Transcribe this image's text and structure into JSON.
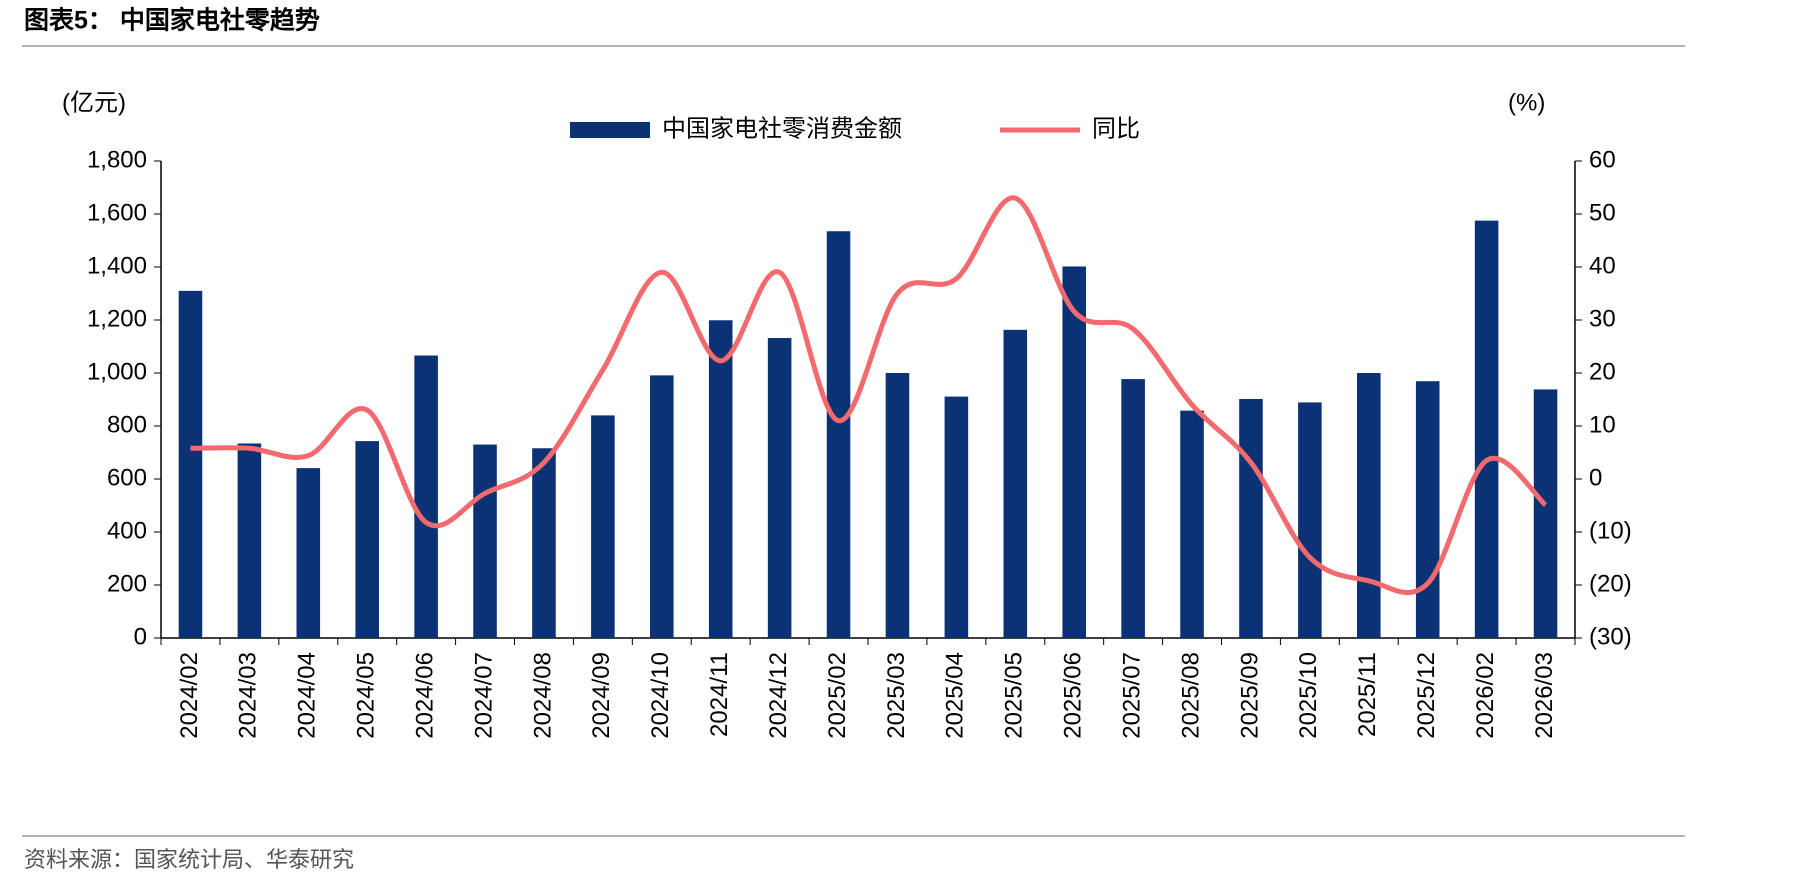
{
  "chart_data": {
    "type": "bar-line",
    "title": "图表5：  中国家电社零趋势",
    "source": "资料来源：国家统计局、华泰研究",
    "y_label": "(亿元)",
    "y2_label": "(%)",
    "categories": [
      "2024/02",
      "2024/03",
      "2024/04",
      "2024/05",
      "2024/06",
      "2024/07",
      "2024/08",
      "2024/09",
      "2024/10",
      "2024/11",
      "2024/12",
      "2025/02",
      "2025/03",
      "2025/04",
      "2025/05",
      "2025/06",
      "2025/07",
      "2025/08",
      "2025/09",
      "2025/10",
      "2025/11",
      "2025/12",
      "2026/02",
      "2026/03"
    ],
    "series": [
      {
        "name": "中国家电社零消费金额",
        "type": "bar",
        "color": "#0b3275",
        "values": [
          1310,
          734,
          641,
          743,
          1066,
          730,
          716,
          840,
          991,
          1199,
          1132,
          1535,
          1000,
          911,
          1163,
          1402,
          977,
          858,
          902,
          889,
          1000,
          969,
          1575,
          938
        ]
      },
      {
        "name": "同比",
        "type": "line",
        "axis": "y2",
        "color": "#f26a6e",
        "values": [
          5.8,
          5.8,
          4.4,
          13,
          -8.2,
          -2.7,
          3.1,
          20.6,
          39,
          22.3,
          39,
          11,
          35,
          37.8,
          53,
          31.6,
          28.3,
          14,
          3.1,
          -14.8,
          -19.2,
          -19.7,
          3.5,
          -4.9
        ]
      }
    ],
    "ylim": [
      0,
      1800
    ],
    "yticks": [
      0,
      200,
      400,
      600,
      800,
      {
        "value": 1000,
        "label": "1,000"
      },
      {
        "value": 1200,
        "label": "1,200"
      },
      {
        "value": 1400,
        "label": "1,400"
      },
      {
        "value": 1600,
        "label": "1,600"
      },
      {
        "value": 1800,
        "label": "1,800"
      }
    ],
    "y2lim": [
      -30,
      60
    ],
    "y2ticks": [
      {
        "value": -30,
        "label": "(30)"
      },
      {
        "value": -20,
        "label": "(20)"
      },
      {
        "value": -10,
        "label": "(10)"
      },
      0,
      10,
      20,
      30,
      40,
      50,
      60
    ]
  }
}
